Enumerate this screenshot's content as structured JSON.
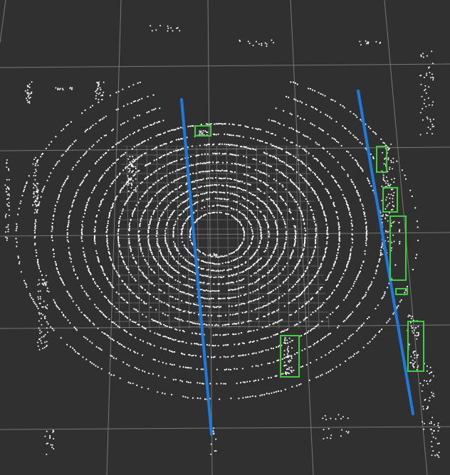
{
  "viewer": {
    "background_color": "#303030",
    "grid_color": "#8a8a8a",
    "fine_grid_color": "#a0a0a0",
    "point_color": "#ffffff",
    "lane_color": "#1f7ae0",
    "box_color": "#3cd13c",
    "visible_text": []
  },
  "scene": {
    "rings": 16,
    "lane_lines": 2,
    "detection_boxes": 7
  }
}
